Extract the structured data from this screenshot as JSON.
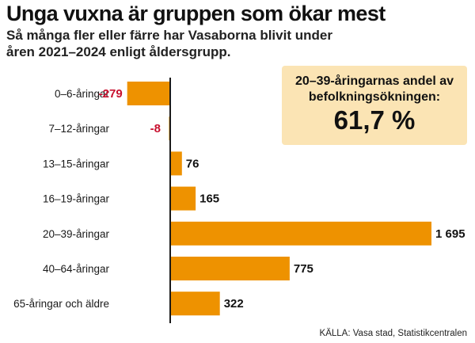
{
  "title": "Unga vuxna är gruppen som ökar mest",
  "subtitle": "Så många fler eller färre har Vasaborna blivit under åren 2021–2024 enligt åldersgrupp.",
  "callout": {
    "text": "20–39-åringarnas andel av befolkningsökningen:",
    "value": "61,7 %"
  },
  "source": "KÄLLA: Vasa stad, Statistikcentralen",
  "colors": {
    "bar": "#ee9200",
    "negative_label": "#c8102e",
    "positive_label": "#111111",
    "callout_bg": "#fbe4b4",
    "axis": "#1a1a1a"
  },
  "chart_data": {
    "type": "bar",
    "orientation": "horizontal",
    "categories": [
      "0–6-åringar",
      "7–12-åringar",
      "13–15-åringar",
      "16–19-åringar",
      "20–39-åringar",
      "40–64-åringar",
      "65-åringar och äldre"
    ],
    "values": [
      -279,
      -8,
      76,
      165,
      1695,
      775,
      322
    ],
    "value_labels": [
      "-279",
      "-8",
      "76",
      "165",
      "1 695",
      "775",
      "322"
    ],
    "title": "Unga vuxna är gruppen som ökar mest",
    "xlabel": "",
    "ylabel": "",
    "xlim": [
      -279,
      1695
    ],
    "grid": false,
    "legend": "none"
  }
}
